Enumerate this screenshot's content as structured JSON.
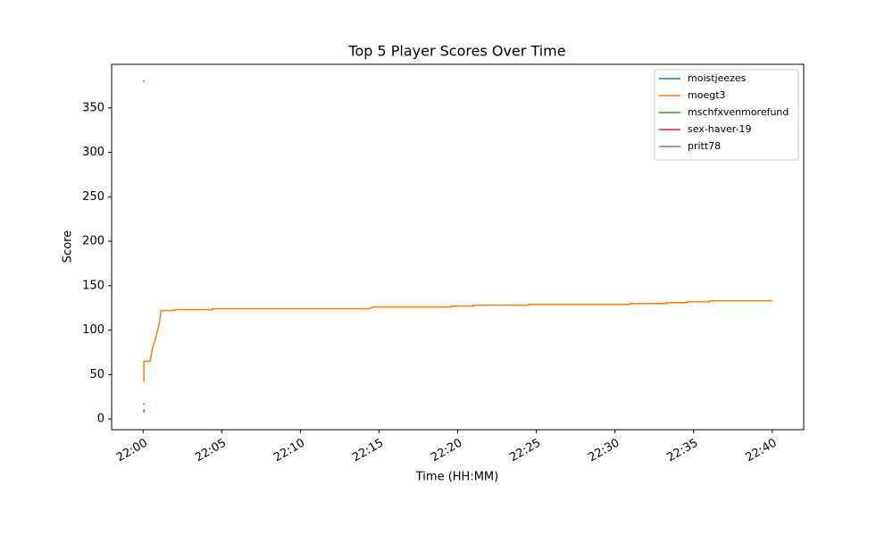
{
  "chart_data": {
    "type": "line",
    "title": "Top 5 Player Scores Over Time",
    "x_label": "Time (HH:MM)",
    "y_label": "Score",
    "xlim": [
      -2,
      42
    ],
    "ylim": [
      -12,
      399
    ],
    "xticks": [
      {
        "value": 0,
        "label": "22:00"
      },
      {
        "value": 5,
        "label": "22:05"
      },
      {
        "value": 10,
        "label": "22:10"
      },
      {
        "value": 15,
        "label": "22:15"
      },
      {
        "value": 20,
        "label": "22:20"
      },
      {
        "value": 25,
        "label": "22:25"
      },
      {
        "value": 30,
        "label": "22:30"
      },
      {
        "value": 35,
        "label": "22:35"
      },
      {
        "value": 40,
        "label": "22:40"
      }
    ],
    "yticks": [
      0,
      50,
      100,
      150,
      200,
      250,
      300,
      350
    ],
    "legend": "upper right",
    "series": [
      {
        "name": "moistjeezes",
        "color": "#1f77b4",
        "x": [
          0,
          0.1
        ],
        "values": [
          380,
          380
        ]
      },
      {
        "name": "moegt3",
        "color": "#ff7f0e",
        "x": [
          0.05,
          0.05,
          0.45,
          0.6,
          0.75,
          1.0,
          1.15,
          2.0,
          2.0,
          4.4,
          4.4,
          14.3,
          14.5,
          14.6,
          19.6,
          19.6,
          21.0,
          21.0,
          24.5,
          24.5,
          31.0,
          31.0,
          33.3,
          33.3,
          34.6,
          34.6,
          36.0,
          36.0,
          40.0
        ],
        "values": [
          42,
          65,
          65,
          80,
          88,
          105,
          122,
          122,
          123,
          123,
          124,
          124,
          125,
          126,
          126,
          127,
          127,
          128,
          128,
          129,
          129,
          130,
          130,
          131,
          131,
          132,
          132,
          133,
          133
        ]
      },
      {
        "name": "mschfxvenmorefund",
        "color": "#2ca02c",
        "x": [
          0,
          0.1
        ],
        "values": [
          17,
          17
        ]
      },
      {
        "name": "sex-haver-19",
        "color": "#d62728",
        "x": [
          0,
          0.1
        ],
        "values": [
          10,
          10
        ]
      },
      {
        "name": "pritt78",
        "color": "#9467bd",
        "x": [
          0,
          0.1
        ],
        "values": [
          8,
          8
        ]
      }
    ]
  }
}
